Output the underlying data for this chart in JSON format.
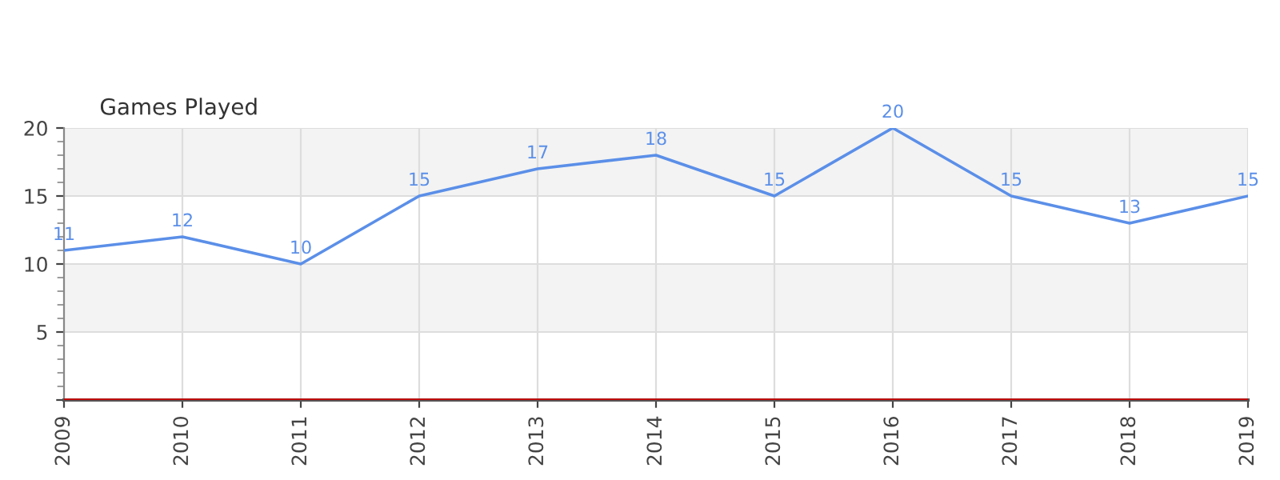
{
  "chart_data": {
    "type": "line",
    "title": "Games Played",
    "categories": [
      "2009",
      "2010",
      "2011",
      "2012",
      "2013",
      "2014",
      "2015",
      "2016",
      "2017",
      "2018",
      "2019"
    ],
    "series": [
      {
        "color": "#5b8fe8",
        "values": [
          11,
          12,
          10,
          15,
          17,
          18,
          15,
          20,
          15,
          13,
          15
        ]
      }
    ],
    "ylim": [
      0,
      20
    ],
    "yticks": [
      {
        "value": 0,
        "label": null
      },
      5,
      10,
      15,
      20
    ],
    "grid": true,
    "data_labels": true,
    "marker": "none",
    "line_style": "solid",
    "bands": [
      {
        "axis": "y",
        "from": 5,
        "to": 10,
        "color": "#f3f3f3"
      },
      {
        "axis": "y",
        "from": 15,
        "to": 20,
        "color": "#f3f3f3"
      }
    ],
    "ref_lines": [
      {
        "axis": "y",
        "value": 0,
        "color": "#cc0000"
      }
    ]
  }
}
